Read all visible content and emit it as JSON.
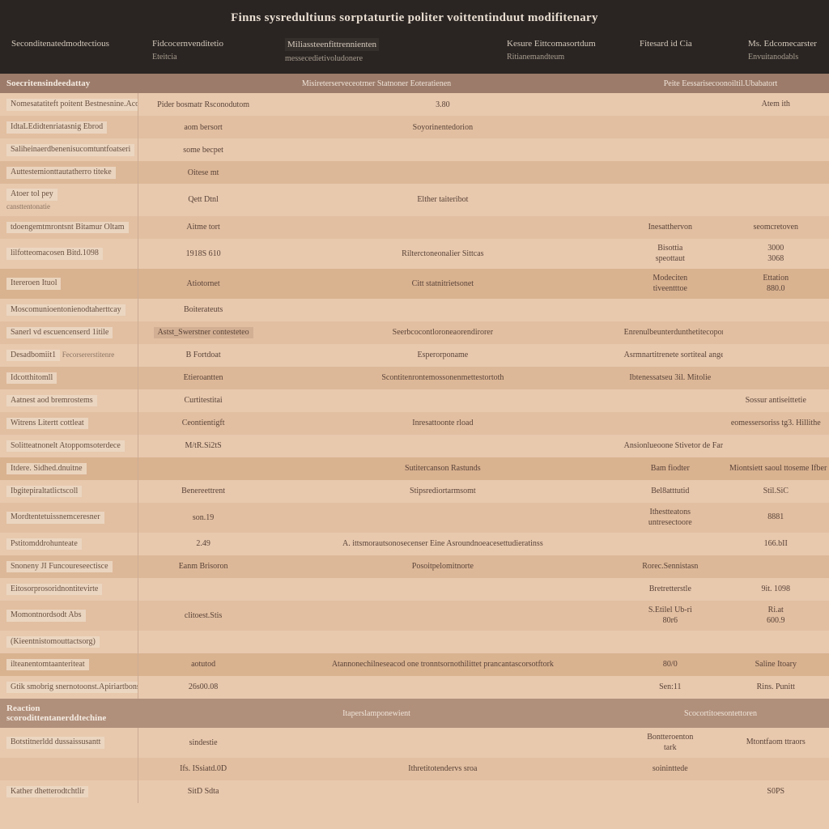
{
  "colors": {
    "header_bg": "#2a2523",
    "header_text": "#e8ddd0",
    "band_dark": "#9c7b6a",
    "shade_a": "#e8c9ae",
    "shade_b": "#e2bfa1",
    "shade_c": "#ddb898",
    "shade_d": "#d9b290",
    "text": "#5a4338"
  },
  "title": "Finns sysredultiuns sorptaturtie politer voittentinduut modifitenary",
  "cols": {
    "c1": {
      "main": "Seconditenatedmodtectious"
    },
    "c2": {
      "main": "Fidcocernvenditetio",
      "sub": "Eteitcia"
    },
    "c3": {
      "main": "Miliassteenfittrennienten",
      "sub": "messecedietivoludonere"
    },
    "c4": {
      "main": "Kesure Eittcomasortdum",
      "sub": "Ritianemandteum"
    },
    "c5": {
      "main": "Fitesard id Cia"
    },
    "c6": {
      "main": "Ms. Edcomecarster",
      "sub": "Envuitanodabls"
    }
  },
  "band1": {
    "b1": "Soecritensindeedattay",
    "b2": "Misireterserveceotrner Statnoner Eoteratienen",
    "b3": "Peite Eessarisecoonoiltil.Ubabatort"
  },
  "rows1": [
    {
      "c1": "Nomesatatiteft poitent Bestnesnine.Acove idities",
      "c2": "Pider bosmatr Rsconodutom",
      "c3": "3.80",
      "c4": "",
      "c5": "Atem ith"
    },
    {
      "c1": "IdtaLEdidtenriatasnig Ebrod",
      "c2": "aom bersort",
      "c3": "Soyorinentedorion",
      "c4": "",
      "c5": ""
    },
    {
      "c1": "Saliheinaerdbenenisucomtuntfoatseri",
      "c2": "some becpet",
      "c3": "",
      "c4": "",
      "c5": ""
    },
    {
      "c1": "Auttestemionttautatherro titeke",
      "c2": "Oitese mt",
      "c3": "",
      "c4": "",
      "c5": ""
    },
    {
      "c1": "Atoer tol pey",
      "c1sub": "cansttentonatie",
      "c2": "Qett Dtnl",
      "c3": "Elther taiteribot",
      "c4": "",
      "c5": ""
    },
    {
      "c1": "tdoengemtmrontsnt Bitamur Oltam",
      "c2": "Aitme tort",
      "c3": "",
      "c4": "Inesatthervon",
      "c5": "seomcretoven"
    },
    {
      "c1": "lilfotteomacosen Bitd.1098",
      "c2": "1918S 610",
      "c3": "Rilterctoneonalier Sittcas",
      "c4": "Bisottia / speottaut",
      "c5": "3000 / 3068"
    },
    {
      "c1": "Itereroen Ituol",
      "c2": "Atiotornet",
      "c3": "Citt statnitrietsonet",
      "c4": "Modeciten / tiveentttoe",
      "c5": "Ettation / 880.0"
    },
    {
      "c1": "Moscomunioentonienodtaherttcay",
      "c2": "Boiterateuts",
      "c3": "",
      "c4": "",
      "c5": ""
    },
    {
      "c1": "Sanerl vd escuencenserd 1itile",
      "c2": "",
      "c2chip": "Astst_Swerstner contesteteo",
      "c3": "Seerbcocontloroneaorendirorer",
      "c4": "Enrenulbeunterdunthetitecoporort",
      "c5": ""
    },
    {
      "c1": "Desadbomiit1",
      "c1extra": "Fecorsererstitenre",
      "c2": "B Fortdoat",
      "c3": "Esperorponame",
      "c4": "Asrmnartitrenete sortiteal angery",
      "c5": ""
    },
    {
      "c1": "Idcotthitomll",
      "c2": "Etieroantten",
      "c3": "Scontitenrontemossonenmettestortoth",
      "c4": "Ibtenessatseu 3il. Mitolie",
      "c5": ""
    },
    {
      "c1": "Aatnest aod bremrostems",
      "c2": "Curtitestitai",
      "c3": "",
      "c4": "",
      "c5": "Sossur antiseittetie"
    },
    {
      "c1": "Witrens Litertt cottleat",
      "c2": "Ceontientigft",
      "c3": "Inresattoonte rload",
      "c4": "",
      "c5": "eomessersoriss tg3. Hillithe"
    },
    {
      "c1": "Solitteatnonelt Atoppomsoterdece",
      "c2": "M/tR.Si2tS",
      "c3": "",
      "c4": "Ansionlueoone Stivetor de Fare soltz.toror",
      "c5": ""
    },
    {
      "c1": "Itdere. Sidhed.dnuitne",
      "c2": "",
      "c3": "Sutitercanson Rastunds",
      "c4": "Bam fiodter",
      "c5": "Miontsiett saoul ttoseme Ifber"
    },
    {
      "c1": "Ibgitepiraltatlictscoll",
      "c2": "Benereettrent",
      "c3": "Stipsrediortarmsomt",
      "c4": "Bel8atttutid",
      "c5": "Stil.SiC"
    },
    {
      "c1": "Mordtentetuissnemceresner",
      "c2": "son.19",
      "c3": "",
      "c4": "Ithestteatons / untresectoore",
      "c5": "8881"
    },
    {
      "c1": "Pstitomddrohunteate",
      "c2": "2.49",
      "c3": "A. ittsmorautsonosecenser Eine Asroundnoeacesettudieratinss",
      "c4": "",
      "c5": "166.bII"
    },
    {
      "c1": "Snoneny JI Funcoureseectisce",
      "c2": "Eanm Brisoron",
      "c3": "Posoitpelomitnorte",
      "c4": "Rorec.Sennistasn",
      "c5": ""
    },
    {
      "c1": "Eitosorprosoridnontitevirte",
      "c2": "",
      "c3": "",
      "c4": "Bretretterstle",
      "c5": "9it. 1098"
    },
    {
      "c1": "Momontnordsodt Abs",
      "c2": "clitoest.Stis",
      "c3": "",
      "c4": "S.Etilel Ub-ri / 80r6",
      "c5": "Ri.at / 600.9"
    },
    {
      "c1": "(Kieentnistomouttactsorg)",
      "c2": "",
      "c3": "",
      "c4": "",
      "c5": ""
    },
    {
      "c1": "ilteanentomtaanteriteat",
      "c2": "aotutod",
      "c3": "Atannonechilneseacod one tronntsornothilittet prancantascorsotftork",
      "c4": "80/0",
      "c5": "Saline Itoary"
    },
    {
      "c1": "Gtik smobrig snernotoonst.Apiriartbons",
      "c2": "26s00.08",
      "c3": "",
      "c4": "Sen:11",
      "c5": "Rins. Punitt"
    }
  ],
  "band2": {
    "b1": "Reaction scorodittentanerddtechine",
    "b2": "Itaperslamponewient",
    "b3": "Scocortitoesontettoren"
  },
  "rows2": [
    {
      "c1": "Botstitnerldd dussaissusantt",
      "c2": "sindestie",
      "c3": "",
      "c4": "Bontteroenton / tark",
      "c5": "Mtontfaom ttraors"
    },
    {
      "c1": "",
      "c2": "Ifs. ISsiatd.0D",
      "c3": "Ithretitotendervs sroa",
      "c4": "soininttede",
      "c5": ""
    },
    {
      "c1": "Kather dhetterodtchtlir",
      "c2": "SitD Sdta",
      "c3": "",
      "c4": "",
      "c5": "S0PS"
    }
  ]
}
